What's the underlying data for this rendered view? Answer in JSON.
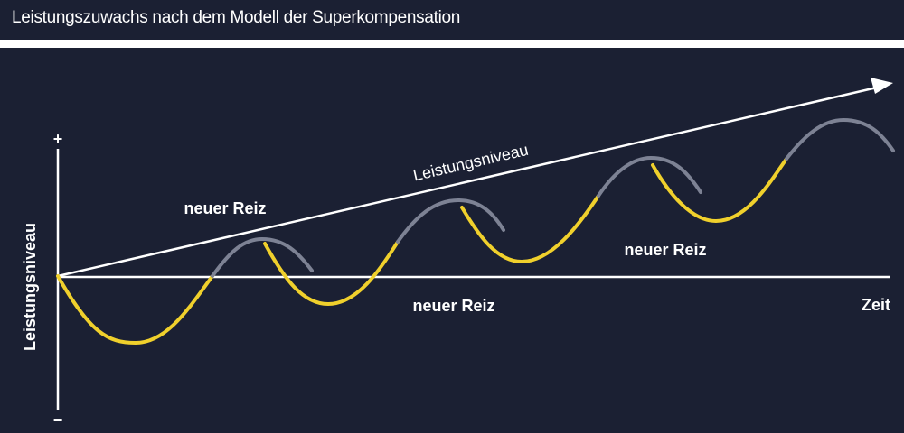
{
  "header": {
    "title": "Leistungszuwachs nach dem Modell der Superkompensation"
  },
  "diagram": {
    "y_axis_label": "Leistungsniveau",
    "y_axis_plus": "+",
    "y_axis_minus": "−",
    "x_axis_label": "Zeit",
    "trend_label": "Leistungsniveau",
    "stimulus_labels": [
      "neuer Reiz",
      "neuer Reiz",
      "neuer Reiz"
    ],
    "colors": {
      "background": "#1b2033",
      "load_curve": "#f0d02c",
      "supercompensation_curve": "#7d8294",
      "axes": "#ffffff"
    }
  }
}
